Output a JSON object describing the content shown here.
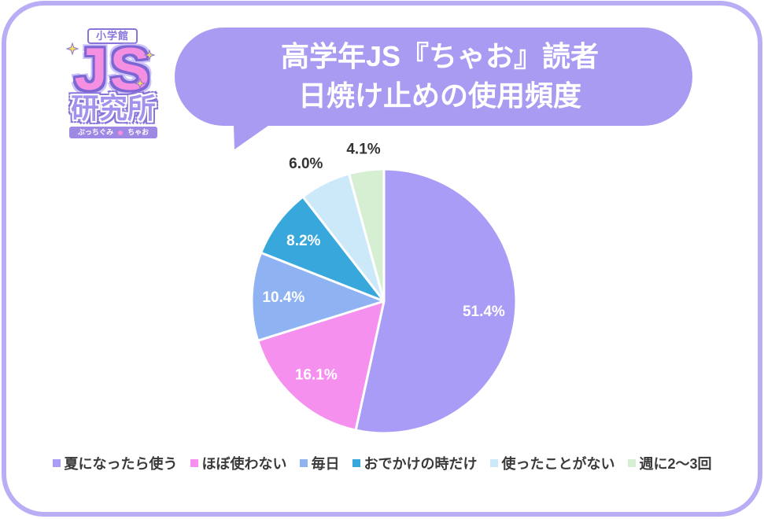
{
  "logo": {
    "publisher": "小学館",
    "mark": "JS",
    "label": "研究所",
    "magazines": [
      "ぷっちぐみ",
      "ちゃお"
    ]
  },
  "theme": {
    "frame": "#b9aef5",
    "bubble": "#a99bf2",
    "inner_label": "#ffffff",
    "outer_label": "#333333"
  },
  "chart_data": {
    "type": "pie",
    "title_lines": [
      "高学年JS『ちゃお』読者",
      "日焼け止めの使用頻度"
    ],
    "categories": [
      "夏になったら使う",
      "ほぼ使わない",
      "毎日",
      "おでかけの時だけ",
      "使ったことがない",
      "週に2～3回"
    ],
    "values": [
      51.4,
      16.1,
      10.4,
      8.2,
      6.0,
      4.1
    ],
    "value_labels": [
      "51.4%",
      "16.1%",
      "10.4%",
      "8.2%",
      "6.0%",
      "4.1%"
    ],
    "colors": [
      "#a99cf6",
      "#f690ee",
      "#8fb2f2",
      "#38a8dc",
      "#cbe9f8",
      "#d6efd2"
    ],
    "legend": "bottom"
  }
}
